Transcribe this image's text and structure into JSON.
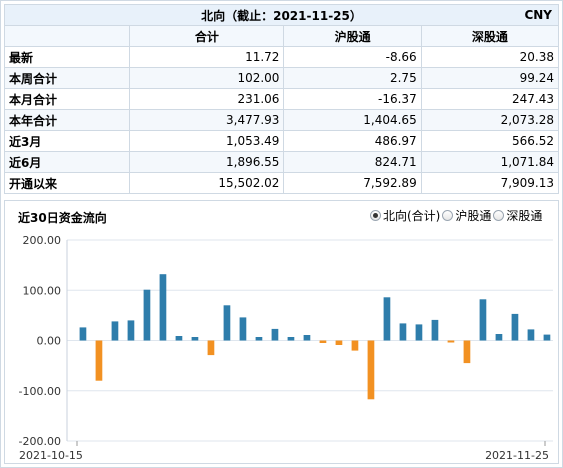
{
  "table": {
    "title": "北向（截止：2021-11-25）",
    "currency": "CNY",
    "headers": [
      "合计",
      "沪股通",
      "深股通"
    ],
    "rows": [
      {
        "label": "最新",
        "values": [
          "11.72",
          "-8.66",
          "20.38"
        ]
      },
      {
        "label": "本周合计",
        "values": [
          "102.00",
          "2.75",
          "99.24"
        ]
      },
      {
        "label": "本月合计",
        "values": [
          "231.06",
          "-16.37",
          "247.43"
        ]
      },
      {
        "label": "本年合计",
        "values": [
          "3,477.93",
          "1,404.65",
          "2,073.28"
        ]
      },
      {
        "label": "近3月",
        "values": [
          "1,053.49",
          "486.97",
          "566.52"
        ]
      },
      {
        "label": "近6月",
        "values": [
          "1,896.55",
          "824.71",
          "1,071.84"
        ]
      },
      {
        "label": "开通以来",
        "values": [
          "15,502.02",
          "7,592.89",
          "7,909.13"
        ]
      }
    ]
  },
  "chart_section": {
    "title": "近30日资金流向",
    "options": [
      {
        "label": "北向(合计)",
        "checked": true
      },
      {
        "label": "沪股通",
        "checked": false
      },
      {
        "label": "深股通",
        "checked": false
      }
    ]
  },
  "colors": {
    "positive": "#2e7dab",
    "negative": "#f29122",
    "grid": "#dfe6ee"
  },
  "chart_data": {
    "type": "bar",
    "ylim": [
      -200,
      200
    ],
    "yticks": [
      "200.00",
      "100.00",
      "0.00",
      "-100.00",
      "-200.00"
    ],
    "ytick_values": [
      200,
      100,
      0,
      -100,
      -200
    ],
    "x_start_label": "2021-10-15",
    "x_end_label": "2021-11-25",
    "values": [
      26,
      -80,
      38,
      40,
      101,
      132,
      9,
      7,
      -29,
      70,
      46,
      7,
      23,
      7,
      11,
      -5,
      -9,
      -20,
      -117,
      86,
      34,
      32,
      41,
      -4,
      -45,
      82,
      13,
      53,
      22,
      11.72
    ]
  }
}
